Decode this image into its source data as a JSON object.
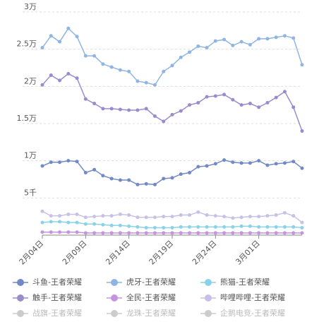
{
  "chart_data": {
    "type": "line",
    "categories": [
      "2月04日",
      null,
      null,
      null,
      null,
      "2月09日",
      null,
      null,
      null,
      null,
      "2月14日",
      null,
      null,
      null,
      null,
      "2月19日",
      null,
      null,
      null,
      null,
      "2月24日",
      null,
      null,
      null,
      null,
      "3月01日",
      null,
      null,
      null,
      null,
      null
    ],
    "ylim": [
      0,
      30000
    ],
    "yticks": [
      {
        "value": 5000,
        "label": "5千"
      },
      {
        "value": 10000,
        "label": "1万"
      },
      {
        "value": 15000,
        "label": "1.5万"
      },
      {
        "value": 20000,
        "label": "2万"
      },
      {
        "value": 25000,
        "label": "2.5万"
      },
      {
        "value": 30000,
        "label": "3万"
      }
    ],
    "grid": true,
    "series": [
      {
        "name": "斗鱼-王者荣耀",
        "color": "#7189c6",
        "values": [
          9300,
          9800,
          9800,
          10000,
          9900,
          8400,
          8800,
          8000,
          7600,
          7400,
          7400,
          6800,
          6900,
          6800,
          7600,
          7700,
          8200,
          8400,
          9200,
          9300,
          9600,
          10100,
          9800,
          9700,
          9700,
          10000,
          9400,
          9600,
          9700,
          9900,
          9000
        ]
      },
      {
        "name": "虎牙-王者荣耀",
        "color": "#8fb5e3",
        "values": [
          25200,
          26800,
          26000,
          27800,
          26700,
          24100,
          24100,
          23000,
          22600,
          22200,
          22000,
          20700,
          20500,
          20200,
          22000,
          22800,
          23900,
          24600,
          25400,
          25200,
          26100,
          26300,
          25500,
          26000,
          25600,
          26400,
          26400,
          26600,
          26800,
          26500,
          22900
        ]
      },
      {
        "name": "熊猫-王者荣耀",
        "color": "#8ad3e6",
        "values": [
          1700,
          1800,
          1800,
          1700,
          1700,
          1500,
          1500,
          1400,
          1300,
          1300,
          1200,
          1100,
          1000,
          1000,
          1000,
          1000,
          1100,
          1100,
          1100,
          1100,
          1100,
          1100,
          1100,
          1200,
          1200,
          1100,
          1100,
          1100,
          1100,
          1100,
          1000
        ]
      },
      {
        "name": "触手-王者荣耀",
        "color": "#9a8ccc",
        "values": [
          20200,
          21500,
          20800,
          21700,
          21100,
          18300,
          17700,
          17000,
          17000,
          16900,
          16800,
          16800,
          17000,
          16000,
          15300,
          16200,
          16700,
          17500,
          17800,
          18600,
          18700,
          18900,
          18200,
          17500,
          17700,
          17200,
          17800,
          18500,
          19300,
          17200,
          14000
        ]
      },
      {
        "name": "全民-王者荣耀",
        "color": "#c693e0",
        "values": [
          400,
          400,
          400,
          400,
          400,
          300,
          300,
          300,
          300,
          300,
          300,
          300,
          300,
          300,
          300,
          300,
          300,
          300,
          300,
          300,
          300,
          300,
          300,
          300,
          300,
          300,
          300,
          300,
          300,
          300,
          300
        ]
      },
      {
        "name": "哔哩哔哩-王者荣耀",
        "color": "#c9c0e6",
        "values": [
          3200,
          2600,
          2600,
          2800,
          2800,
          2400,
          2500,
          2600,
          2600,
          2800,
          2700,
          2400,
          2400,
          2400,
          2500,
          2500,
          2700,
          2700,
          3100,
          2700,
          2600,
          2500,
          2300,
          2400,
          2500,
          2500,
          2600,
          2700,
          3000,
          2600,
          1700
        ]
      }
    ],
    "hidden_series": [
      {
        "name": "战旗-王者荣耀",
        "color": "#cccccc"
      },
      {
        "name": "龙珠-王者荣耀",
        "color": "#cccccc"
      },
      {
        "name": "企鹅电竞-王者荣耀",
        "color": "#cccccc"
      }
    ]
  }
}
